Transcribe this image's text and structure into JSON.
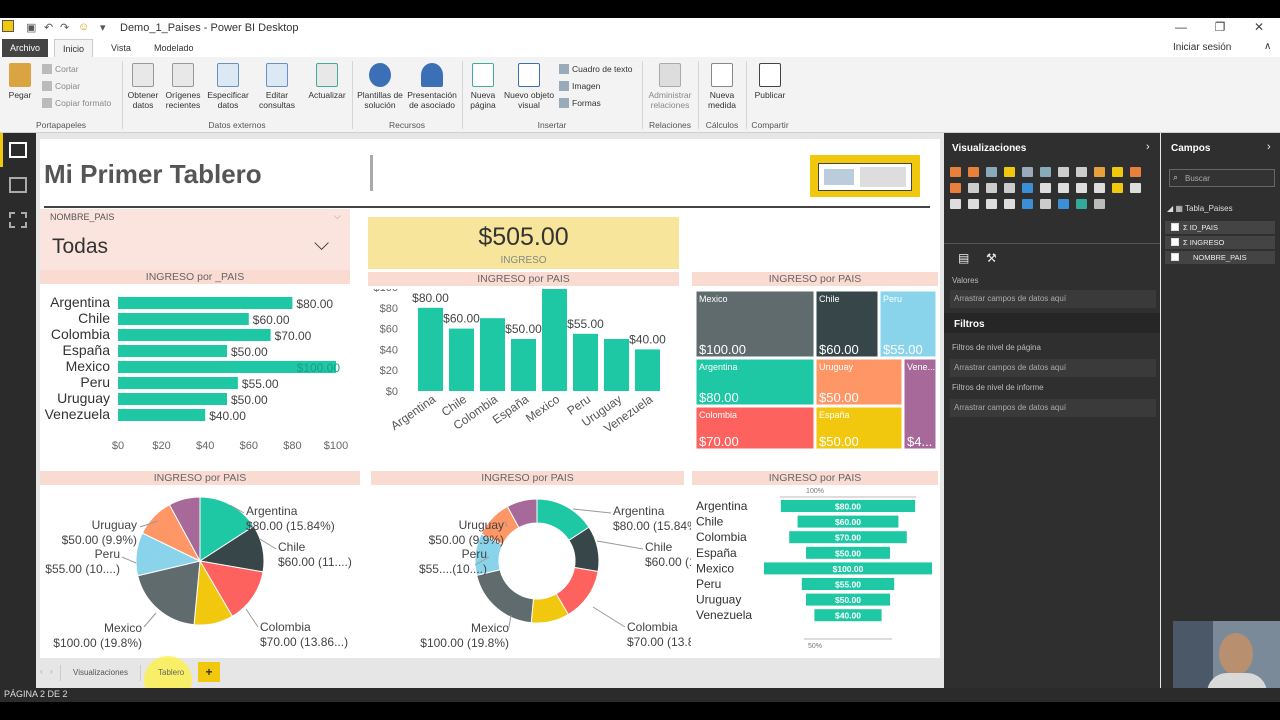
{
  "window": {
    "title": "Demo_1_Paises - Power BI Desktop",
    "signin": "Iniciar sesión"
  },
  "tabs": [
    "Archivo",
    "Inicio",
    "Vista",
    "Modelado"
  ],
  "ribbon": {
    "clipboard": {
      "paste": "Pegar",
      "cut": "Cortar",
      "copy": "Copiar",
      "format_copy": "Copiar formato",
      "group": "Portapapeles"
    },
    "external": {
      "get_data": "Obtener datos",
      "recent": "Orígenes recientes",
      "enter_data": "Especificar datos",
      "edit_queries": "Editar consultas",
      "refresh": "Actualizar",
      "group": "Datos externos"
    },
    "resources": {
      "templates": "Plantillas de solución",
      "partner": "Presentación de asociado",
      "group": "Recursos"
    },
    "insert": {
      "new_page": "Nueva página",
      "new_visual": "Nuevo objeto visual",
      "textbox": "Cuadro de texto",
      "image": "Imagen",
      "shapes": "Formas",
      "group": "Insertar"
    },
    "relations": {
      "manage": "Administrar relaciones",
      "group": "Relaciones"
    },
    "calc": {
      "new_measure": "Nueva medida",
      "group": "Cálculos"
    },
    "share": {
      "publish": "Publicar",
      "group": "Compartir"
    }
  },
  "report": {
    "title": "Mi Primer Tablero",
    "slicer": {
      "field": "NOMBRE_PAIS",
      "value": "Todas"
    },
    "card": {
      "value": "$505.00",
      "label": "INGRESO"
    },
    "bar_header": "INGRESO por _PAIS",
    "col_header": "INGRESO por PAIS",
    "tree_header": "INGRESO por PAIS",
    "pie_header": "INGRESO por PAIS",
    "donut_header": "INGRESO por PAIS",
    "funnel_header": "INGRESO por PAIS",
    "funnel_top": "100%",
    "funnel_bottom": "50%"
  },
  "chart_data": [
    {
      "type": "bar",
      "title": "INGRESO por _PAIS",
      "categories": [
        "Argentina",
        "Chile",
        "Colombia",
        "España",
        "Mexico",
        "Peru",
        "Uruguay",
        "Venezuela"
      ],
      "values": [
        80,
        60,
        70,
        50,
        100,
        55,
        50,
        40
      ],
      "labels": [
        "$80.00",
        "$60.00",
        "$70.00",
        "$50.00",
        "$100.00",
        "$55.00",
        "$50.00",
        "$40.00"
      ],
      "xticks": [
        "$0",
        "$20",
        "$40",
        "$60",
        "$80",
        "$100"
      ],
      "xlim": [
        0,
        100
      ],
      "color": "#1ec8a5"
    },
    {
      "type": "bar",
      "orientation": "vertical",
      "title": "INGRESO por PAIS",
      "categories": [
        "Argentina",
        "Chile",
        "Colombia",
        "España",
        "Mexico",
        "Peru",
        "Uruguay",
        "Venezuela"
      ],
      "values": [
        80,
        60,
        70,
        50,
        100,
        55,
        50,
        40
      ],
      "labels": [
        "$80.00",
        "$60.00",
        "",
        "$50.00",
        "$100.00",
        "$55.00",
        "",
        "$40.00"
      ],
      "yticks": [
        "$0",
        "$20",
        "$40",
        "$60",
        "$80",
        "$100"
      ],
      "ylim": [
        0,
        100
      ],
      "color": "#1ec8a5"
    },
    {
      "type": "treemap",
      "title": "INGRESO por PAIS",
      "categories": [
        "Mexico",
        "Chile",
        "Peru",
        "Argentina",
        "Uruguay",
        "Venezuela",
        "Colombia",
        "España"
      ],
      "values": [
        100,
        60,
        55,
        80,
        50,
        40,
        70,
        50
      ],
      "labels": [
        "$100.00",
        "$60.00",
        "$55.00",
        "$80.00",
        "$50.00",
        "$4...",
        "$70.00",
        "$50.00"
      ]
    },
    {
      "type": "pie",
      "title": "INGRESO por PAIS",
      "categories": [
        "Argentina",
        "Chile",
        "Colombia",
        "España",
        "Mexico",
        "Peru",
        "Uruguay",
        "Venezuela"
      ],
      "values": [
        80,
        60,
        70,
        50,
        100,
        55,
        50,
        40
      ],
      "labels": [
        "Argentina\n$80.00 (15.84%)",
        "Chile\n$60.00 (11....)",
        "Colombia\n$70.00 (13.86...)",
        "",
        "Mexico\n$100.00 (19.8%)",
        "Peru\n$55.00 (10....)",
        "Uruguay\n$50.00 (9.9%)",
        ""
      ]
    },
    {
      "type": "donut",
      "title": "INGRESO por PAIS",
      "categories": [
        "Argentina",
        "Chile",
        "Colombia",
        "España",
        "Mexico",
        "Peru",
        "Uruguay",
        "Venezuela"
      ],
      "values": [
        80,
        60,
        70,
        50,
        100,
        55,
        50,
        40
      ],
      "labels": [
        "Argentina\n$80.00 (15.84%)",
        "Chile\n$60.00 (11....)",
        "Colombia\n$70.00 (13.86...)",
        "",
        "Mexico\n$100.00 (19.8%)",
        "Peru\n$55....(10....)",
        "Uruguay\n$50.00 (9.9%)",
        ""
      ]
    },
    {
      "type": "funnel",
      "title": "INGRESO por PAIS",
      "categories": [
        "Argentina",
        "Chile",
        "Colombia",
        "España",
        "Mexico",
        "Peru",
        "Uruguay",
        "Venezuela"
      ],
      "values": [
        80,
        60,
        70,
        50,
        100,
        55,
        50,
        40
      ],
      "labels": [
        "$80.00",
        "$60.00",
        "$70.00",
        "$50.00",
        "$100.00",
        "$55.00",
        "$50.00",
        "$40.00"
      ]
    }
  ],
  "colors": {
    "teal": "#1ec8a5",
    "dark": "#374649",
    "red": "#fd625e",
    "yellow": "#f2c80f",
    "gray": "#5f6b6d",
    "blue": "#8ad4eb",
    "orange": "#fe9666",
    "purple": "#a66999"
  },
  "visualizations_panel": {
    "title": "Visualizaciones",
    "values": "Valores",
    "drop": "Arrastrar campos de datos aquí",
    "filters": "Filtros",
    "page_filters": "Filtros de nivel de página",
    "report_filters": "Filtros de nivel de informe"
  },
  "fields_panel": {
    "title": "Campos",
    "search_placeholder": "Buscar",
    "table": "Tabla_Paises",
    "fields": [
      "ID_PAIS",
      "INGRESO",
      "NOMBRE_PAIS"
    ]
  },
  "pages": [
    "Visualizaciones",
    "Tablero"
  ],
  "status": "PÁGINA 2 DE 2"
}
